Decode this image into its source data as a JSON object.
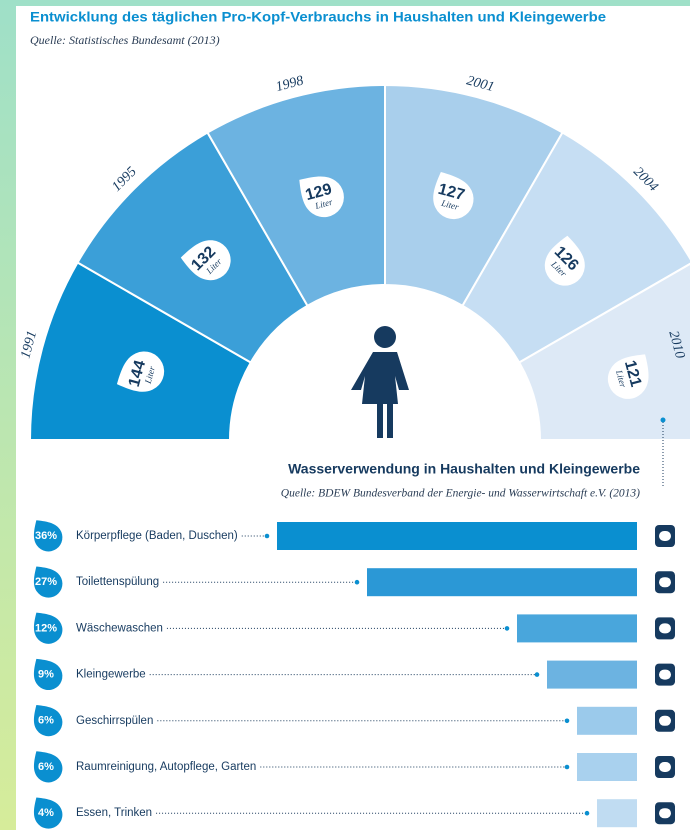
{
  "chart_data": [
    {
      "type": "semidonut",
      "title": "Entwicklung des täglichen Pro-Kopf-Verbrauchs in Haushalten und Kleingewerbe",
      "subtitle": "Quelle: Statistisches Bundesamt (2013)",
      "unit": "Liter",
      "categories": [
        "1991",
        "1995",
        "1998",
        "2001",
        "2004",
        "2010"
      ],
      "values": [
        144,
        132,
        129,
        127,
        126,
        121
      ],
      "colors": [
        "#0a8fd0",
        "#3b9fd8",
        "#6cb3e1",
        "#a9cfec",
        "#c6def3",
        "#dde9f6"
      ]
    },
    {
      "type": "hbar",
      "title": "Wasserverwendung in Haushalten und Kleingewerbe",
      "subtitle": "Quelle: BDEW Bundesverband der Energie- und Wasserwirtschaft e.V. (2013)",
      "categories": [
        "Körperpflege (Baden, Duschen)",
        "Toilettenspülung",
        "Wäschewaschen",
        "Kleingewerbe",
        "Geschirrspülen",
        "Raumreinigung, Autopflege, Garten",
        "Essen, Trinken"
      ],
      "values": [
        36,
        27,
        12,
        9,
        6,
        6,
        4
      ],
      "value_labels": [
        "36%",
        "27%",
        "12%",
        "9%",
        "6%",
        "6%",
        "4%"
      ],
      "colors": [
        "#0a8fd0",
        "#2b98d6",
        "#49a6dc",
        "#6cb3e1",
        "#9bcaeb",
        "#a9d1ee",
        "#c0dcf2"
      ]
    }
  ]
}
